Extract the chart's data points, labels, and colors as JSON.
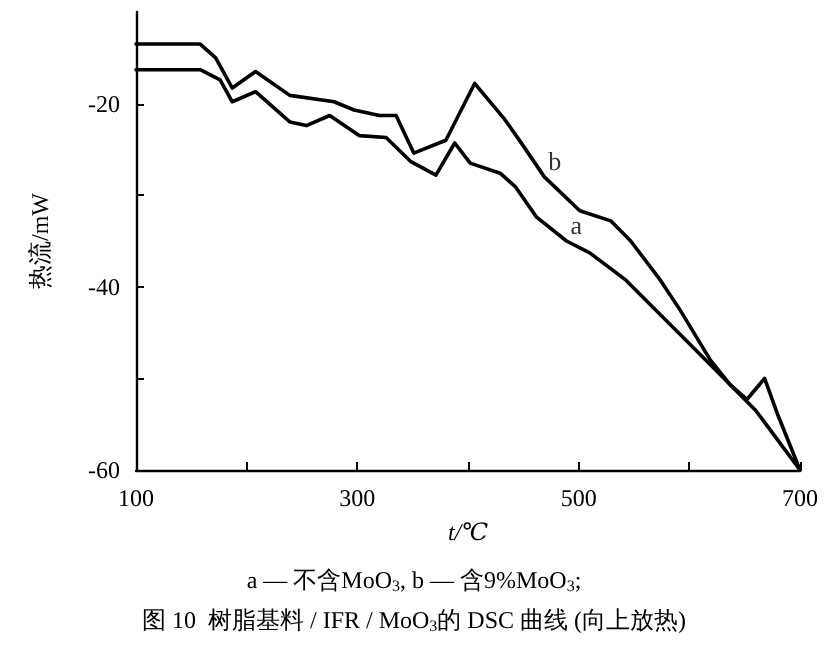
{
  "chart_data": {
    "type": "line",
    "title": "图 10  树脂基料 / IFR / MoO$_{3}$的 DSC 曲线 (向上放热)",
    "xlabel": "t/℃",
    "ylabel": "热流/mW",
    "xlim": [
      100,
      700
    ],
    "xticks": [
      100,
      {
        "value": 200,
        "label": null
      },
      300,
      {
        "value": 400,
        "label": null
      },
      500,
      {
        "value": 600,
        "label": null
      },
      700
    ],
    "ylim": [
      -60,
      -10
    ],
    "yticks": [
      -60,
      {
        "value": -50,
        "label": null
      },
      -40,
      {
        "value": -30,
        "label": null
      },
      -20
    ],
    "grid": false,
    "marker": "none",
    "line_style": "solid",
    "series": [
      {
        "color": "#000000",
        "x": [
          100,
          158,
          176,
          187,
          208,
          239,
          254,
          275,
          302,
          326,
          348,
          371,
          388,
          402,
          429,
          443,
          462,
          489,
          510,
          543,
          556,
          590,
          628,
          660,
          700
        ],
        "values": [
          -16.3,
          -16.3,
          -17.4,
          -19.8,
          -18.7,
          -22,
          -22.4,
          -21.3,
          -23.5,
          -23.7,
          -26.3,
          -27.8,
          -24.3,
          -26.5,
          -27.6,
          -29.1,
          -32.4,
          -35,
          -36.3,
          -39.3,
          -40.9,
          -45,
          -49.6,
          -53.5,
          -60
        ]
      },
      {
        "color": "#000000",
        "x": [
          100,
          158,
          172,
          187,
          208,
          239,
          279,
          297,
          320,
          335,
          351,
          380,
          406,
          433,
          447,
          469,
          501,
          529,
          547,
          574,
          592,
          619,
          637,
          652,
          668,
          680,
          700
        ],
        "values": [
          -13.5,
          -13.5,
          -15,
          -18.3,
          -16.5,
          -19.1,
          -19.8,
          -20.7,
          -21.3,
          -21.3,
          -25.4,
          -24,
          -17.8,
          -21.7,
          -24.1,
          -28,
          -31.7,
          -32.8,
          -35,
          -39.3,
          -42.6,
          -48,
          -50.7,
          -52.3,
          -50,
          -54,
          -60
        ]
      }
    ],
    "annotations": [
      {
        "text": "b",
        "x": 469,
        "y": -28
      },
      {
        "text": "a",
        "x": 489,
        "y": -35
      },
      "a — 不含MoO$_{3}$, b — 含9%MoO$_{3}$;"
    ]
  }
}
